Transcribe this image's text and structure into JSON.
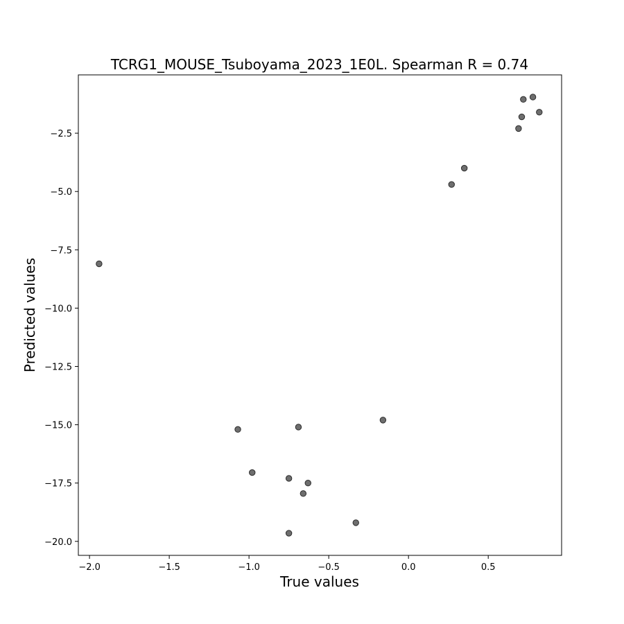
{
  "chart_data": {
    "type": "scatter",
    "title": "TCRG1_MOUSE_Tsuboyama_2023_1E0L. Spearman R = 0.74",
    "xlabel": "True values",
    "ylabel": "Predicted values",
    "xlim": [
      -2.07,
      0.96
    ],
    "ylim": [
      -20.6,
      0.0
    ],
    "xticks": [
      -2.0,
      -1.5,
      -1.0,
      -0.5,
      0.0,
      0.5
    ],
    "xtick_labels": [
      "−2.0",
      "−1.5",
      "−1.0",
      "−0.5",
      "0.0",
      "0.5"
    ],
    "yticks": [
      -20.0,
      -17.5,
      -15.0,
      -12.5,
      -10.0,
      -7.5,
      -5.0,
      -2.5
    ],
    "ytick_labels": [
      "−20.0",
      "−17.5",
      "−15.0",
      "−12.5",
      "−10.0",
      "−7.5",
      "−5.0",
      "−2.5"
    ],
    "grid": false,
    "marker_color": "#555555",
    "points": [
      {
        "x": -1.94,
        "y": -8.1
      },
      {
        "x": -1.07,
        "y": -15.2
      },
      {
        "x": -0.98,
        "y": -17.05
      },
      {
        "x": -0.75,
        "y": -17.3
      },
      {
        "x": -0.75,
        "y": -19.65
      },
      {
        "x": -0.69,
        "y": -15.1
      },
      {
        "x": -0.66,
        "y": -17.95
      },
      {
        "x": -0.63,
        "y": -17.5
      },
      {
        "x": -0.33,
        "y": -19.2
      },
      {
        "x": -0.16,
        "y": -14.8
      },
      {
        "x": 0.27,
        "y": -4.7
      },
      {
        "x": 0.35,
        "y": -4.0
      },
      {
        "x": 0.69,
        "y": -2.3
      },
      {
        "x": 0.71,
        "y": -1.8
      },
      {
        "x": 0.72,
        "y": -1.05
      },
      {
        "x": 0.78,
        "y": -0.95
      },
      {
        "x": 0.82,
        "y": -1.6
      }
    ]
  }
}
